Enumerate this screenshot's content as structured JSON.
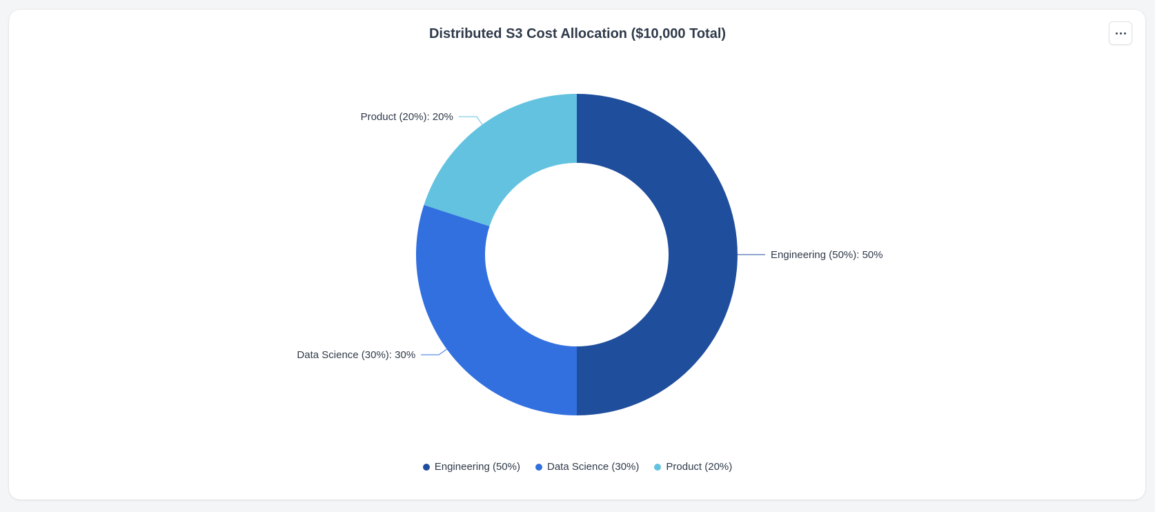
{
  "header": {
    "menu_icon": "more-horizontal-icon"
  },
  "chart_data": {
    "type": "pie",
    "variant": "donut",
    "title": "Distributed S3 Cost Allocation ($10,000 Total)",
    "categories": [
      "Engineering (50%)",
      "Data Science (30%)",
      "Product (20%)"
    ],
    "values": [
      50,
      30,
      20
    ],
    "data_labels": [
      "Engineering (50%): 50%",
      "Data Science (30%): 30%",
      "Product (20%): 20%"
    ],
    "colors": [
      "#1f4e9c",
      "#3270e0",
      "#62c2e0"
    ],
    "legend": {
      "placement": "bottom-center",
      "entries": [
        "Engineering (50%)",
        "Data Science (30%)",
        "Product (20%)"
      ]
    }
  }
}
